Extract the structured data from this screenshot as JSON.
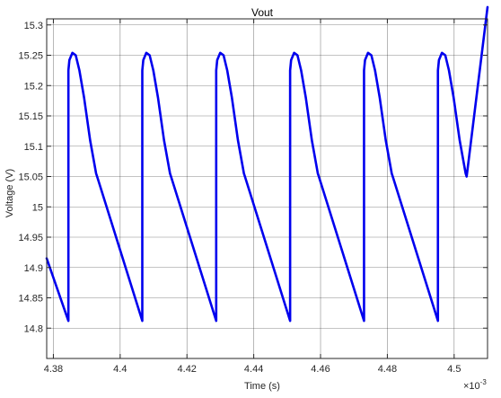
{
  "chart_data": {
    "type": "line",
    "title": "Vout",
    "xlabel": "Time (s)",
    "ylabel": "Voltage (V)",
    "x_exponent_label": "×10",
    "x_exponent": "-3",
    "xlim": [
      4.378,
      4.51
    ],
    "ylim": [
      14.75,
      15.31
    ],
    "x_ticks": [
      4.38,
      4.4,
      4.42,
      4.44,
      4.46,
      4.48,
      4.5
    ],
    "x_tick_labels": [
      "4.38",
      "4.4",
      "4.42",
      "4.44",
      "4.46",
      "4.48",
      "4.5"
    ],
    "y_ticks": [
      14.8,
      14.85,
      14.9,
      14.95,
      15.0,
      15.05,
      15.1,
      15.15,
      15.2,
      15.25,
      15.3
    ],
    "y_tick_labels": [
      "14.8",
      "14.85",
      "14.9",
      "14.95",
      "15",
      "15.05",
      "15.1",
      "15.15",
      "15.2",
      "15.25",
      "15.3"
    ],
    "grid": true,
    "line_color": "#0000ee",
    "axes_color": "#262626",
    "grid_color": "#262626",
    "series": [
      {
        "period": 0.02213,
        "first_drop_x": 4.3845,
        "drop_offsets": [
          0.0,
          0.0003,
          0.0012,
          0.0022,
          0.0033,
          0.0047,
          0.0065,
          0.0083,
          0.0086
        ],
        "drop_values": [
          15.225,
          15.242,
          15.254,
          15.25,
          15.225,
          15.18,
          15.11,
          15.055,
          15.05
        ],
        "min_value": 14.812,
        "start_value": 14.915
      }
    ]
  }
}
